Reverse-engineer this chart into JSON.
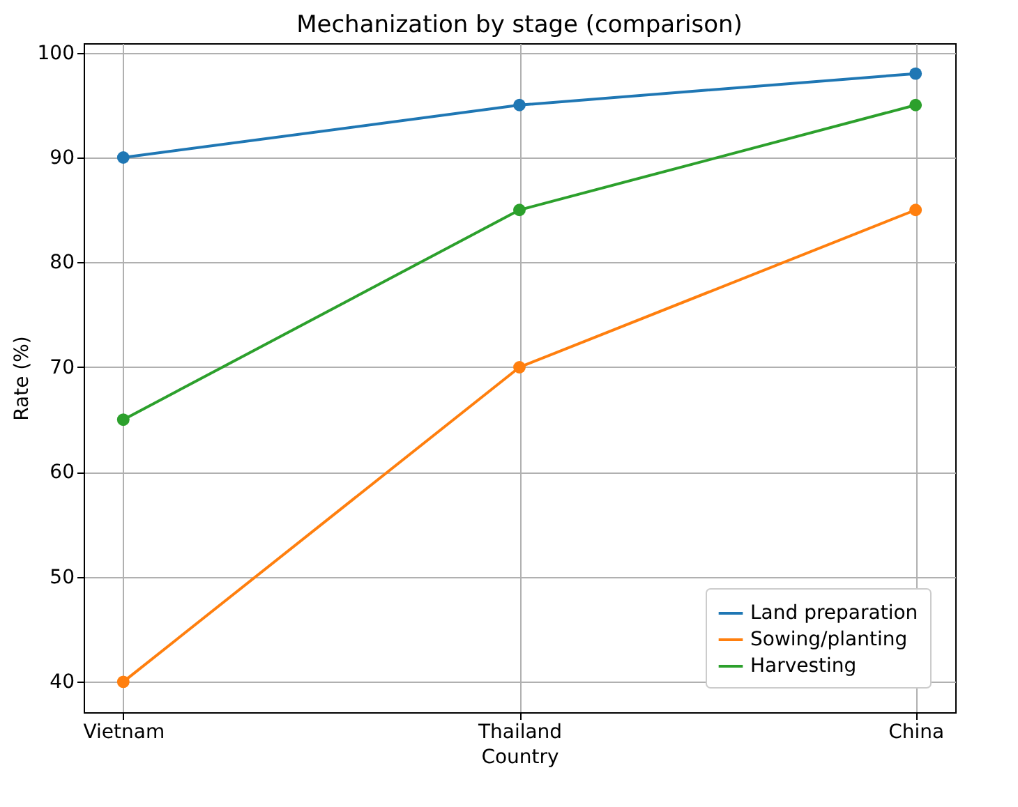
{
  "chart_data": {
    "type": "line",
    "title": "Mechanization by stage (comparison)",
    "xlabel": "Country",
    "ylabel": "Rate (%)",
    "categories": [
      "Vietnam",
      "Thailand",
      "China"
    ],
    "series": [
      {
        "name": "Land preparation",
        "color": "#1f77b4",
        "values": [
          90,
          95,
          98
        ]
      },
      {
        "name": "Sowing/planting",
        "color": "#ff7f0e",
        "values": [
          40,
          70,
          85
        ]
      },
      {
        "name": "Harvesting",
        "color": "#2ca02c",
        "values": [
          65,
          85,
          95
        ]
      }
    ],
    "ylim": [
      37.1,
      100.9
    ],
    "yticks": [
      40,
      50,
      60,
      70,
      80,
      90,
      100
    ],
    "grid": true,
    "legend": "bottom right",
    "marker": "circle",
    "line_style": "solid"
  }
}
